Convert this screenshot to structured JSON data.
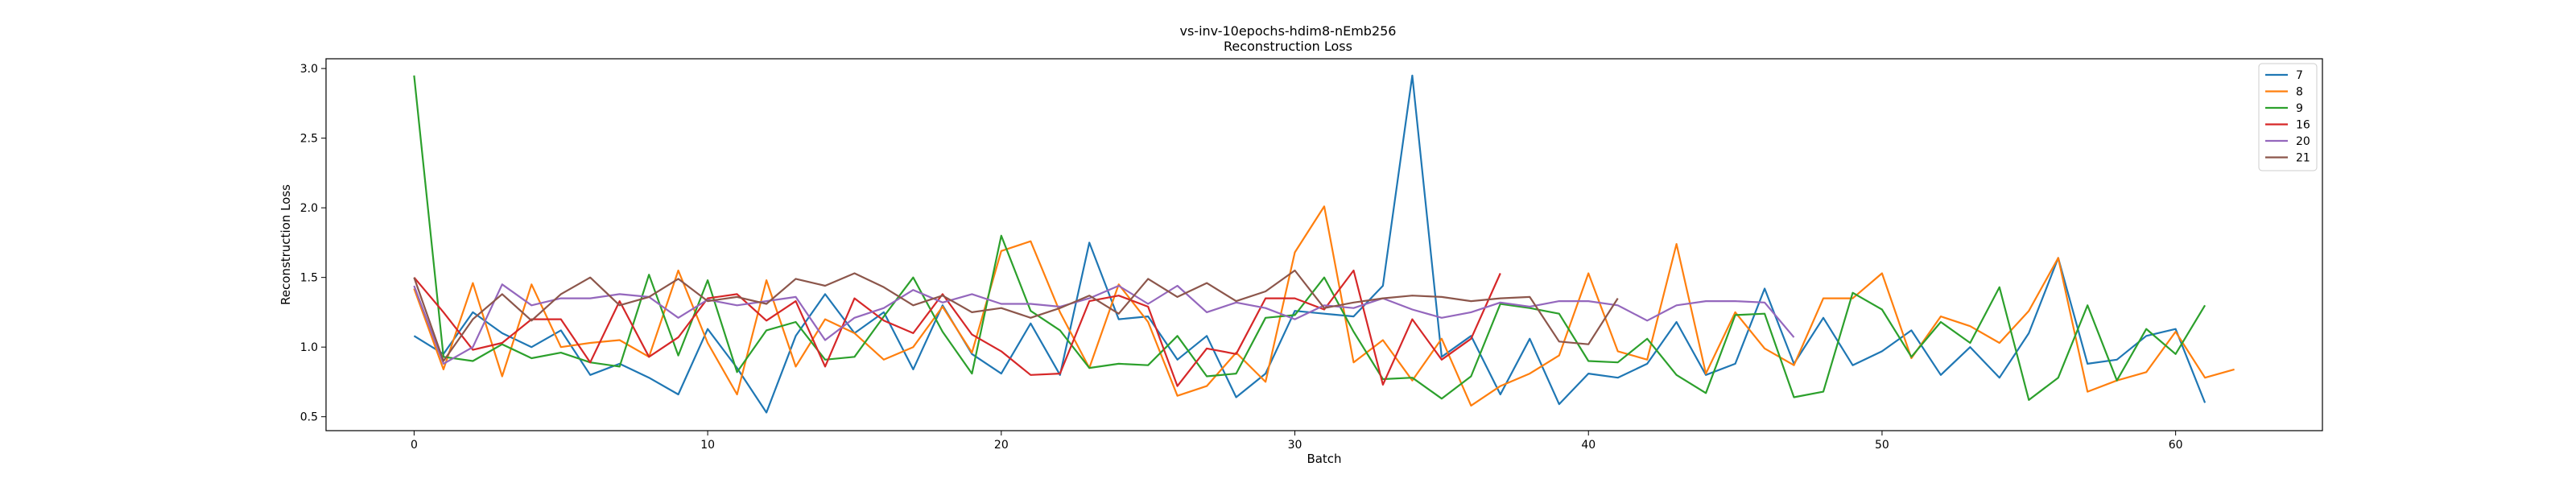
{
  "chart_data": {
    "type": "line",
    "title": "vs-inv-10epochs-hdim8-nEmb256",
    "subtitle": "Reconstruction Loss",
    "xlabel": "Batch",
    "ylabel": "Reconstruction Loss",
    "xlim": [
      -3,
      65
    ],
    "ylim": [
      0.4,
      3.07
    ],
    "xticks": [
      0,
      10,
      20,
      30,
      40,
      50,
      60
    ],
    "yticks": [
      0.5,
      1.0,
      1.5,
      2.0,
      2.5,
      3.0
    ],
    "grid": false,
    "legend_position": "top-right",
    "series": [
      {
        "name": "7",
        "color": "#1f77b4",
        "values": [
          1.08,
          0.95,
          1.25,
          1.1,
          1.0,
          1.12,
          0.8,
          0.88,
          0.78,
          0.66,
          1.13,
          0.85,
          0.53,
          1.08,
          1.38,
          1.1,
          1.25,
          0.84,
          1.3,
          0.95,
          0.81,
          1.17,
          0.8,
          1.75,
          1.2,
          1.22,
          0.91,
          1.08,
          0.64,
          0.81,
          1.26,
          1.24,
          1.22,
          1.44,
          2.95,
          0.93,
          1.08,
          0.66,
          1.06,
          0.59,
          0.81,
          0.78,
          0.88,
          1.18,
          0.8,
          0.88,
          1.42,
          0.88,
          1.21,
          0.87,
          0.97,
          1.12,
          0.8,
          1.0,
          0.78,
          1.1,
          1.64,
          0.88,
          0.91,
          1.08,
          1.13,
          0.6
        ]
      },
      {
        "name": "8",
        "color": "#ff7f0e",
        "values": [
          1.42,
          0.84,
          1.46,
          0.79,
          1.45,
          1.0,
          1.03,
          1.05,
          0.93,
          1.55,
          1.03,
          0.66,
          1.48,
          0.86,
          1.2,
          1.1,
          0.91,
          1.0,
          1.29,
          0.96,
          1.69,
          1.76,
          1.25,
          0.85,
          1.45,
          1.18,
          0.65,
          0.72,
          0.96,
          0.75,
          1.68,
          2.01,
          0.89,
          1.05,
          0.76,
          1.06,
          0.58,
          0.72,
          0.81,
          0.94,
          1.53,
          0.97,
          0.91,
          1.74,
          0.81,
          1.25,
          0.99,
          0.87,
          1.35,
          1.35,
          1.53,
          0.92,
          1.22,
          1.15,
          1.03,
          1.26,
          1.64,
          0.68,
          0.76,
          0.82,
          1.11,
          0.78,
          0.84
        ]
      },
      {
        "name": "9",
        "color": "#2ca02c",
        "values": [
          2.95,
          0.93,
          0.9,
          1.02,
          0.92,
          0.96,
          0.89,
          0.86,
          1.52,
          0.94,
          1.48,
          0.82,
          1.12,
          1.18,
          0.91,
          0.93,
          1.22,
          1.5,
          1.11,
          0.81,
          1.8,
          1.26,
          1.12,
          0.85,
          0.88,
          0.87,
          1.08,
          0.79,
          0.81,
          1.21,
          1.23,
          1.5,
          1.11,
          0.77,
          0.78,
          0.63,
          0.79,
          1.31,
          1.28,
          1.24,
          0.9,
          0.89,
          1.06,
          0.8,
          0.67,
          1.23,
          1.24,
          0.64,
          0.68,
          1.39,
          1.27,
          0.93,
          1.18,
          1.03,
          1.43,
          0.62,
          0.78,
          1.3,
          0.76,
          1.13,
          0.95,
          1.3
        ]
      },
      {
        "name": "16",
        "color": "#d62728",
        "values": [
          1.5,
          1.25,
          0.98,
          1.03,
          1.2,
          1.2,
          0.89,
          1.33,
          0.93,
          1.07,
          1.35,
          1.38,
          1.19,
          1.33,
          0.86,
          1.35,
          1.19,
          1.1,
          1.38,
          1.09,
          0.97,
          0.8,
          0.81,
          1.33,
          1.37,
          1.29,
          0.72,
          0.99,
          0.95,
          1.35,
          1.35,
          1.27,
          1.55,
          0.73,
          1.2,
          0.91,
          1.06,
          1.53
        ]
      },
      {
        "name": "20",
        "color": "#9467bd",
        "values": [
          1.44,
          0.88,
          1.0,
          1.45,
          1.3,
          1.35,
          1.35,
          1.38,
          1.36,
          1.21,
          1.34,
          1.3,
          1.33,
          1.36,
          1.05,
          1.21,
          1.28,
          1.41,
          1.32,
          1.38,
          1.31,
          1.31,
          1.29,
          1.35,
          1.44,
          1.31,
          1.44,
          1.25,
          1.32,
          1.28,
          1.2,
          1.3,
          1.28,
          1.35,
          1.27,
          1.21,
          1.25,
          1.32,
          1.29,
          1.33,
          1.33,
          1.3,
          1.19,
          1.3,
          1.33,
          1.33,
          1.32,
          1.07
        ]
      },
      {
        "name": "21",
        "color": "#8c564b",
        "values": [
          1.5,
          0.9,
          1.2,
          1.38,
          1.19,
          1.38,
          1.5,
          1.3,
          1.36,
          1.49,
          1.33,
          1.36,
          1.31,
          1.49,
          1.44,
          1.53,
          1.43,
          1.3,
          1.37,
          1.25,
          1.28,
          1.21,
          1.28,
          1.37,
          1.24,
          1.49,
          1.36,
          1.46,
          1.33,
          1.4,
          1.55,
          1.28,
          1.32,
          1.35,
          1.37,
          1.36,
          1.33,
          1.35,
          1.36,
          1.04,
          1.02,
          1.35
        ]
      }
    ]
  }
}
